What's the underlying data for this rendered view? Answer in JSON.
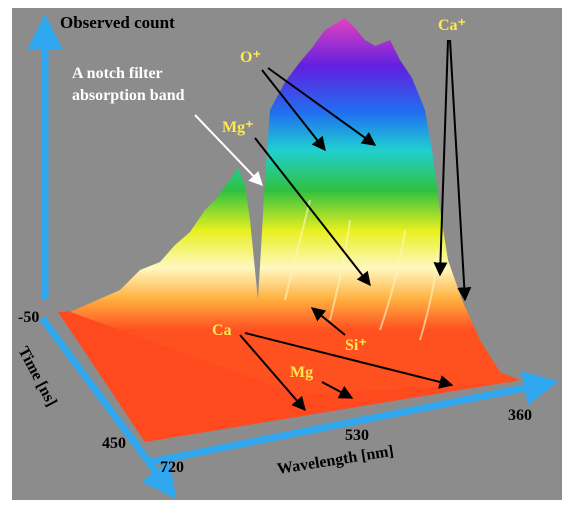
{
  "figure": {
    "z_axis_label": "Observed count",
    "annotation_lines": [
      "A notch filter",
      "absorption band"
    ],
    "ions": {
      "o_plus": "O⁺",
      "mg_plus": "Mg⁺",
      "ca_plus": "Ca⁺",
      "si_plus": "Si⁺",
      "ca": "Ca",
      "mg": "Mg"
    },
    "time_axis": {
      "label": "Time [ns]",
      "ticks": [
        -50,
        450
      ]
    },
    "wavelength_axis": {
      "label": "Wavelength [nm]",
      "ticks": [
        720,
        530,
        360
      ]
    }
  }
}
